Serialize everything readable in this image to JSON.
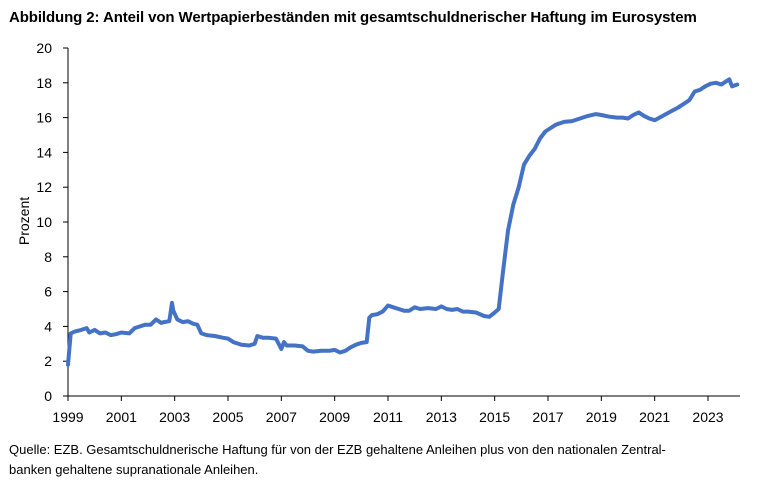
{
  "figure": {
    "title": "Abbildung 2: Anteil von Wertpapierbeständen mit gesamtschuldnerischer Haftung im Eurosystem",
    "note_line1": "Quelle: EZB. Gesamtschuldnerische Haftung für von der EZB gehaltene Anleihen plus von den nationalen Zentral-",
    "note_line2": "banken gehaltene supranationale Anleihen."
  },
  "colors": {
    "line": "#4472C4",
    "axis": "#000000"
  },
  "chart_data": {
    "type": "line",
    "title": "Abbildung 2: Anteil von Wertpapierbeständen mit gesamtschuldnerischer Haftung im Eurosystem",
    "xlabel": "",
    "ylabel": "Prozent",
    "xlim": [
      1999,
      2024.2
    ],
    "ylim": [
      0,
      20
    ],
    "xticks": [
      1999,
      2001,
      2003,
      2005,
      2007,
      2009,
      2011,
      2013,
      2015,
      2017,
      2019,
      2021,
      2023
    ],
    "yticks": [
      0,
      2,
      4,
      6,
      8,
      10,
      12,
      14,
      16,
      18,
      20
    ],
    "grid": false,
    "legend": "none",
    "series": [
      {
        "name": "",
        "x": [
          1999.0,
          1999.1,
          1999.25,
          1999.5,
          1999.7,
          1999.8,
          2000.0,
          2000.2,
          2000.4,
          2000.6,
          2000.8,
          2001.0,
          2001.3,
          2001.5,
          2001.7,
          2001.9,
          2002.1,
          2002.3,
          2002.5,
          2002.6,
          2002.8,
          2002.9,
          2002.95,
          2003.1,
          2003.3,
          2003.5,
          2003.7,
          2003.85,
          2004.0,
          2004.2,
          2004.5,
          2004.8,
          2005.0,
          2005.2,
          2005.5,
          2005.8,
          2006.0,
          2006.1,
          2006.3,
          2006.5,
          2006.8,
          2007.0,
          2007.1,
          2007.2,
          2007.5,
          2007.8,
          2008.0,
          2008.2,
          2008.5,
          2008.8,
          2009.0,
          2009.2,
          2009.4,
          2009.6,
          2009.8,
          2010.0,
          2010.2,
          2010.3,
          2010.4,
          2010.6,
          2010.8,
          2011.0,
          2011.2,
          2011.4,
          2011.6,
          2011.8,
          2012.0,
          2012.2,
          2012.5,
          2012.8,
          2013.0,
          2013.2,
          2013.4,
          2013.6,
          2013.8,
          2014.0,
          2014.3,
          2014.6,
          2014.8,
          2015.0,
          2015.15,
          2015.3,
          2015.5,
          2015.7,
          2015.9,
          2016.1,
          2016.3,
          2016.5,
          2016.7,
          2016.9,
          2017.1,
          2017.3,
          2017.6,
          2017.9,
          2018.2,
          2018.5,
          2018.8,
          2019.0,
          2019.3,
          2019.6,
          2019.8,
          2020.0,
          2020.2,
          2020.4,
          2020.6,
          2020.8,
          2021.0,
          2021.3,
          2021.6,
          2021.9,
          2022.1,
          2022.3,
          2022.5,
          2022.7,
          2022.9,
          2023.1,
          2023.3,
          2023.5,
          2023.6,
          2023.8,
          2023.9,
          2024.1
        ],
        "y": [
          1.8,
          3.6,
          3.7,
          3.8,
          3.9,
          3.65,
          3.8,
          3.6,
          3.65,
          3.5,
          3.55,
          3.65,
          3.6,
          3.9,
          4.0,
          4.1,
          4.1,
          4.4,
          4.2,
          4.25,
          4.3,
          5.35,
          4.9,
          4.4,
          4.25,
          4.3,
          4.15,
          4.1,
          3.6,
          3.5,
          3.45,
          3.35,
          3.3,
          3.1,
          2.95,
          2.9,
          3.0,
          3.45,
          3.35,
          3.35,
          3.3,
          2.7,
          3.1,
          2.9,
          2.9,
          2.85,
          2.6,
          2.55,
          2.6,
          2.6,
          2.65,
          2.5,
          2.6,
          2.8,
          2.95,
          3.05,
          3.1,
          4.5,
          4.65,
          4.7,
          4.85,
          5.2,
          5.1,
          5.0,
          4.9,
          4.9,
          5.1,
          5.0,
          5.05,
          5.0,
          5.15,
          5.0,
          4.95,
          5.0,
          4.85,
          4.85,
          4.8,
          4.6,
          4.55,
          4.8,
          5.0,
          7.0,
          9.5,
          11.0,
          12.0,
          13.3,
          13.8,
          14.2,
          14.8,
          15.2,
          15.4,
          15.6,
          15.75,
          15.8,
          15.95,
          16.1,
          16.2,
          16.15,
          16.05,
          16.0,
          16.0,
          15.95,
          16.15,
          16.3,
          16.1,
          15.95,
          15.85,
          16.1,
          16.35,
          16.6,
          16.8,
          17.0,
          17.5,
          17.6,
          17.8,
          17.95,
          18.0,
          17.9,
          18.0,
          18.2,
          17.8,
          17.9
        ]
      }
    ]
  }
}
